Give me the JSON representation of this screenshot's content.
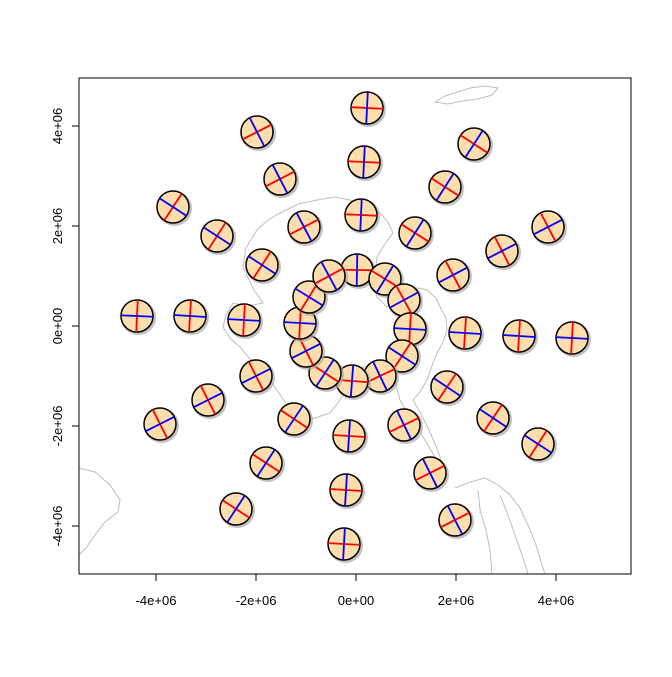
{
  "chart_data": {
    "type": "scatter",
    "title": "",
    "xlabel": "",
    "ylabel": "",
    "xlim": [
      -5540000,
      5500000
    ],
    "ylim": [
      -4960000,
      4960000
    ],
    "grid": false,
    "x_ticks": [
      {
        "value": -4000000,
        "label": "-4e+06"
      },
      {
        "value": -2000000,
        "label": "-2e+06"
      },
      {
        "value": 0,
        "label": "0e+00"
      },
      {
        "value": 2000000,
        "label": "2e+06"
      },
      {
        "value": 4000000,
        "label": "4e+06"
      }
    ],
    "y_ticks": [
      {
        "value": -4000000,
        "label": "-4e+06"
      },
      {
        "value": -2000000,
        "label": "-2e+06"
      },
      {
        "value": 0,
        "label": "0e+00"
      },
      {
        "value": 2000000,
        "label": "2e+06"
      },
      {
        "value": 4000000,
        "label": "4e+06"
      }
    ],
    "marker": "tissot-indicatrix",
    "colors": {
      "fill": "#FFDEAD",
      "outline": "#000000",
      "shadow": "#AAAAAA",
      "meridian_line": "#0000FF",
      "parallel_line": "#FF0000",
      "coastline": "#BEBEBE"
    },
    "points": [
      [
        20000,
        1120000
      ],
      [
        580000,
        940000
      ],
      [
        960000,
        520000
      ],
      [
        1080000,
        -60000
      ],
      [
        920000,
        -600000
      ],
      [
        480000,
        -1000000
      ],
      [
        -80000,
        -1100000
      ],
      [
        -620000,
        -940000
      ],
      [
        -1000000,
        -500000
      ],
      [
        -1120000,
        60000
      ],
      [
        -940000,
        580000
      ],
      [
        -540000,
        1000000
      ],
      [
        100000,
        2220000
      ],
      [
        1180000,
        1860000
      ],
      [
        1940000,
        1020000
      ],
      [
        2180000,
        -140000
      ],
      [
        1820000,
        -1220000
      ],
      [
        960000,
        -1980000
      ],
      [
        -140000,
        -2200000
      ],
      [
        -1240000,
        -1860000
      ],
      [
        -2000000,
        -1000000
      ],
      [
        -2240000,
        120000
      ],
      [
        -1880000,
        1220000
      ],
      [
        -1040000,
        1980000
      ],
      [
        160000,
        3280000
      ],
      [
        1780000,
        2780000
      ],
      [
        2920000,
        1500000
      ],
      [
        3260000,
        -200000
      ],
      [
        2740000,
        -1840000
      ],
      [
        1480000,
        -2940000
      ],
      [
        -200000,
        -3280000
      ],
      [
        -1800000,
        -2740000
      ],
      [
        -2960000,
        -1480000
      ],
      [
        -3320000,
        200000
      ],
      [
        -2780000,
        1800000
      ],
      [
        -1520000,
        2940000
      ],
      [
        220000,
        4360000
      ],
      [
        2360000,
        3640000
      ],
      [
        3840000,
        1980000
      ],
      [
        4320000,
        -240000
      ],
      [
        3640000,
        -2360000
      ],
      [
        1980000,
        -3880000
      ],
      [
        -240000,
        -4360000
      ],
      [
        -2400000,
        -3660000
      ],
      [
        -3920000,
        -1960000
      ],
      [
        -4380000,
        200000
      ],
      [
        -3660000,
        2380000
      ],
      [
        -1980000,
        3880000
      ]
    ]
  }
}
